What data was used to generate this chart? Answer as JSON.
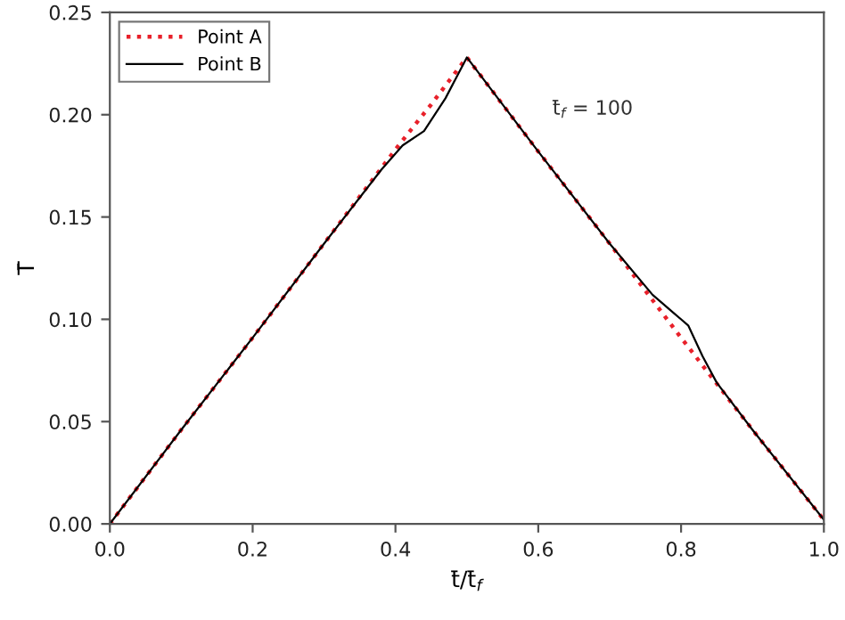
{
  "chart_data": {
    "type": "line",
    "xlabel": "t̄/t̄$_{f}$",
    "ylabel": "T̄",
    "annotations": [
      "t̄$_{f}$ = 100"
    ],
    "xlim": [
      0.0,
      1.0
    ],
    "xticks": [
      {
        "value": 0,
        "label": "0.0"
      },
      0.2,
      0.4,
      0.6,
      0.8,
      {
        "value": 1,
        "label": "1.0"
      }
    ],
    "ylim": [
      0.0,
      0.25
    ],
    "yticks": [
      {
        "value": 0,
        "label": "0.00"
      },
      0.05,
      {
        "value": 0.1,
        "label": "0.10"
      },
      0.15,
      {
        "value": 0.2,
        "label": "0.20"
      },
      0.25
    ],
    "grid": false,
    "legend": "top left",
    "series": [
      {
        "name": "Point A",
        "color": "#e8202a",
        "line_style": "dotted",
        "x": [
          0,
          0.1,
          0.2,
          0.3,
          0.4,
          0.45,
          0.5,
          0.55,
          0.6,
          0.7,
          0.8,
          0.9,
          1.0
        ],
        "values": [
          0,
          0.046,
          0.091,
          0.137,
          0.183,
          0.205,
          0.228,
          0.205,
          0.182,
          0.137,
          0.091,
          0.046,
          0.002
        ]
      },
      {
        "name": "Point B",
        "color": "#000000",
        "line_style": "solid",
        "x": [
          0,
          0.1,
          0.2,
          0.3,
          0.38,
          0.41,
          0.44,
          0.47,
          0.5,
          0.6,
          0.7,
          0.76,
          0.79,
          0.81,
          0.83,
          0.85,
          0.9,
          1.0
        ],
        "values": [
          0,
          0.046,
          0.091,
          0.137,
          0.173,
          0.185,
          0.192,
          0.208,
          0.228,
          0.182,
          0.137,
          0.112,
          0.103,
          0.097,
          0.082,
          0.069,
          0.046,
          0.002
        ]
      }
    ]
  }
}
